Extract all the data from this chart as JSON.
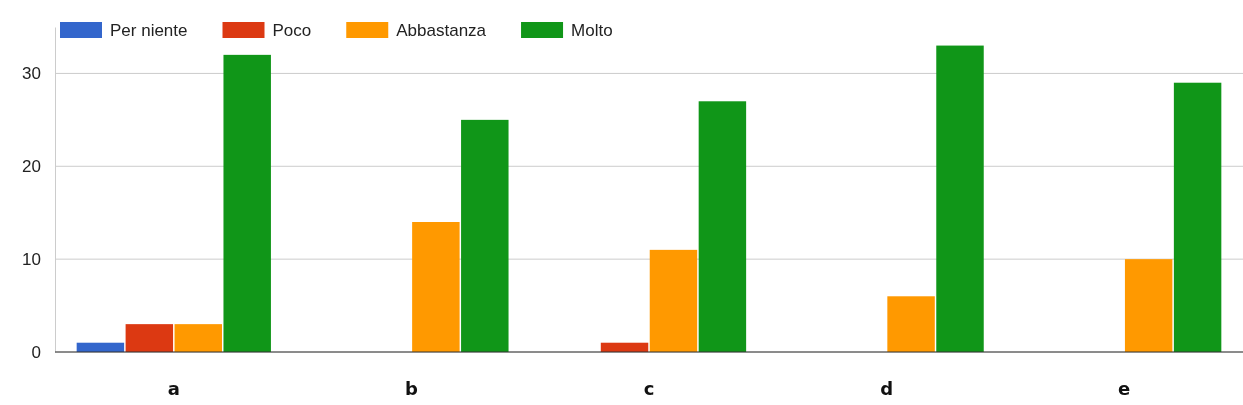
{
  "chart_data": {
    "type": "bar",
    "categories": [
      "a",
      "b",
      "c",
      "d",
      "e"
    ],
    "series": [
      {
        "name": "Per niente",
        "color": "#3366cc",
        "values": [
          1,
          0,
          0,
          0,
          0
        ]
      },
      {
        "name": "Poco",
        "color": "#dc3912",
        "values": [
          3,
          0,
          1,
          0,
          0
        ]
      },
      {
        "name": "Abbastanza",
        "color": "#ff9900",
        "values": [
          3,
          14,
          11,
          6,
          10
        ]
      },
      {
        "name": "Molto",
        "color": "#109618",
        "values": [
          32,
          25,
          27,
          33,
          29
        ]
      }
    ],
    "ylim": [
      0,
      35
    ],
    "yticks": [
      0,
      10,
      20,
      30
    ],
    "grid": "y",
    "legend": "top left"
  }
}
